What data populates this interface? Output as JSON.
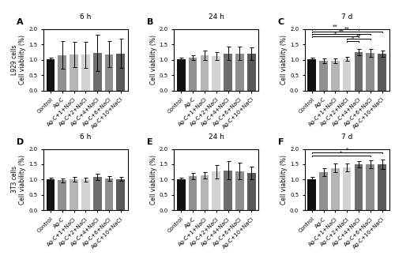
{
  "chart_data": [
    {
      "type": "bar",
      "panel_label": "A",
      "title": "6 h",
      "ylabel": "L929 cells\nCell viability (%)",
      "categories": [
        "Control",
        "Ag-C",
        "Ag-C+1+NaCl",
        "Ag-C+2+NaCl",
        "Ag-C+4+NaCl",
        "Ag-C+6+NaCl",
        "Ag-C+10+NaCl"
      ],
      "values": [
        1.02,
        1.15,
        1.17,
        1.16,
        1.22,
        1.18,
        1.2
      ],
      "errors": [
        0.05,
        0.45,
        0.4,
        0.42,
        0.58,
        0.42,
        0.48
      ],
      "colors": [
        "#111111",
        "#909090",
        "#b5b5b5",
        "#d2d2d2",
        "#6e6e6e",
        "#8e8e8e",
        "#5a5a5a"
      ],
      "ylim": [
        0,
        2.0
      ],
      "yticks": [
        {
          "value": 0,
          "label": "0.0"
        },
        0.5,
        {
          "value": 1,
          "label": "1.0"
        },
        1.5,
        {
          "value": 2,
          "label": "2.0"
        }
      ],
      "significance": []
    },
    {
      "type": "bar",
      "panel_label": "B",
      "title": "24 h",
      "ylabel": "Cell viability (%)",
      "categories": [
        "Control",
        "Ag-C",
        "Ag-C+1+NaCl",
        "Ag-C+2+NaCl",
        "Ag-C+4+NaCl",
        "Ag-C+6+NaCl",
        "Ag-C+10+NaCl"
      ],
      "values": [
        1.02,
        1.07,
        1.14,
        1.12,
        1.2,
        1.2,
        1.19
      ],
      "errors": [
        0.04,
        0.08,
        0.15,
        0.12,
        0.22,
        0.22,
        0.2
      ],
      "colors": [
        "#111111",
        "#909090",
        "#b5b5b5",
        "#d2d2d2",
        "#6e6e6e",
        "#8e8e8e",
        "#5a5a5a"
      ],
      "ylim": [
        0,
        2.0
      ],
      "yticks": [
        {
          "value": 0,
          "label": "0.0"
        },
        0.5,
        {
          "value": 1,
          "label": "1.0"
        },
        1.5,
        {
          "value": 2,
          "label": "2.0"
        }
      ],
      "significance": []
    },
    {
      "type": "bar",
      "panel_label": "C",
      "title": "7 d",
      "ylabel": "Cell viability (%)",
      "categories": [
        "Control",
        "Ag-C",
        "Ag-C+1+NaCl",
        "Ag-C+2+NaCl",
        "Ag-C+4+NaCl",
        "Ag-C+6+NaCl",
        "Ag-C+10+NaCl"
      ],
      "values": [
        1.02,
        0.96,
        0.96,
        1.02,
        1.25,
        1.22,
        1.19
      ],
      "errors": [
        0.05,
        0.07,
        0.08,
        0.06,
        0.1,
        0.12,
        0.1
      ],
      "colors": [
        "#111111",
        "#909090",
        "#b5b5b5",
        "#d2d2d2",
        "#6e6e6e",
        "#8e8e8e",
        "#5a5a5a"
      ],
      "ylim": [
        0,
        2.0
      ],
      "yticks": [
        {
          "value": 0,
          "label": "0.0"
        },
        0.5,
        {
          "value": 1,
          "label": "1.0"
        },
        1.5,
        {
          "value": 2,
          "label": "2.0"
        }
      ],
      "significance": [
        {
          "from": 3,
          "to": 4,
          "y": 1.6,
          "label": "*"
        },
        {
          "from": 3,
          "to": 5,
          "y": 1.68,
          "label": "**"
        },
        {
          "from": 0,
          "to": 4,
          "y": 1.76,
          "label": "*"
        },
        {
          "from": 0,
          "to": 5,
          "y": 1.84,
          "label": "**"
        },
        {
          "from": 0,
          "to": 6,
          "y": 1.92,
          "label": "**"
        },
        {
          "from": 0,
          "to": 4,
          "y": 1.99,
          "label": "**"
        }
      ]
    },
    {
      "type": "bar",
      "panel_label": "D",
      "title": "6 h",
      "ylabel": "3T3 cells\nCell viability (%)",
      "categories": [
        "Control",
        "Ag-C",
        "Ag-C+1+NaCl",
        "Ag-C+2+NaCl",
        "Ag-C+4+NaCl",
        "Ag-C+6+NaCl",
        "Ag-C+10+NaCl"
      ],
      "values": [
        1.02,
        0.98,
        1.02,
        1.0,
        1.08,
        1.04,
        1.02
      ],
      "errors": [
        0.04,
        0.06,
        0.08,
        0.06,
        0.1,
        0.08,
        0.06
      ],
      "colors": [
        "#111111",
        "#909090",
        "#b5b5b5",
        "#d2d2d2",
        "#6e6e6e",
        "#8e8e8e",
        "#5a5a5a"
      ],
      "ylim": [
        0,
        2.0
      ],
      "yticks": [
        {
          "value": 0,
          "label": "0.0"
        },
        0.5,
        {
          "value": 1,
          "label": "1.0"
        },
        1.5,
        {
          "value": 2,
          "label": "2.0"
        }
      ],
      "significance": []
    },
    {
      "type": "bar",
      "panel_label": "E",
      "title": "24 h",
      "ylabel": "Cell viability (%)",
      "categories": [
        "Control",
        "Ag-C",
        "Ag-C+1+NaCl",
        "Ag-C+2+NaCl",
        "Ag-C+4+NaCl",
        "Ag-C+6+NaCl",
        "Ag-C+10+NaCl"
      ],
      "values": [
        1.02,
        1.12,
        1.14,
        1.26,
        1.3,
        1.28,
        1.22
      ],
      "errors": [
        0.04,
        0.1,
        0.1,
        0.22,
        0.3,
        0.28,
        0.2
      ],
      "colors": [
        "#111111",
        "#909090",
        "#b5b5b5",
        "#d2d2d2",
        "#6e6e6e",
        "#8e8e8e",
        "#5a5a5a"
      ],
      "ylim": [
        0,
        2.0
      ],
      "yticks": [
        {
          "value": 0,
          "label": "0.0"
        },
        0.5,
        {
          "value": 1,
          "label": "1.0"
        },
        1.5,
        {
          "value": 2,
          "label": "2.0"
        }
      ],
      "significance": []
    },
    {
      "type": "bar",
      "panel_label": "F",
      "title": "7 d",
      "ylabel": "Cell viability (%)",
      "categories": [
        "Control",
        "Ag-C",
        "Ag-C+1+NaCl",
        "Ag-C+2+NaCl",
        "Ag-C+4+NaCl",
        "Ag-C+6+NaCl",
        "Ag-C+10+NaCl"
      ],
      "values": [
        1.02,
        1.24,
        1.38,
        1.4,
        1.5,
        1.5,
        1.5
      ],
      "errors": [
        0.06,
        0.12,
        0.14,
        0.12,
        0.1,
        0.14,
        0.16
      ],
      "colors": [
        "#111111",
        "#909090",
        "#b5b5b5",
        "#d2d2d2",
        "#6e6e6e",
        "#8e8e8e",
        "#5a5a5a"
      ],
      "ylim": [
        0,
        2.0
      ],
      "yticks": [
        {
          "value": 0,
          "label": "0.0"
        },
        0.5,
        {
          "value": 1,
          "label": "1.0"
        },
        1.5,
        {
          "value": 2,
          "label": "2.0"
        }
      ],
      "significance": [
        {
          "from": 0,
          "to": 5,
          "y": 1.78,
          "label": "*"
        },
        {
          "from": 0,
          "to": 6,
          "y": 1.88,
          "label": "*"
        }
      ]
    }
  ]
}
